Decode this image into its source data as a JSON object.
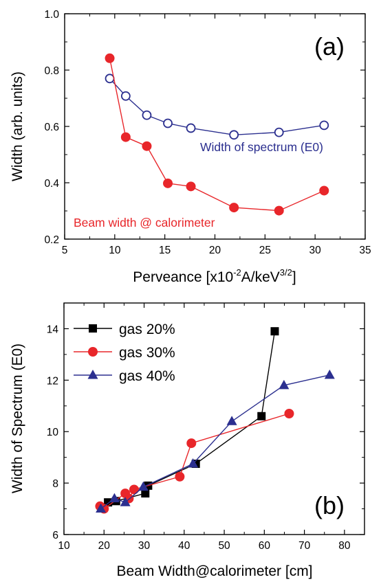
{
  "chart_data": [
    {
      "type": "line",
      "panel_label": "(a)",
      "xlabel": "Perveance [x10",
      "xlabel_exp1": "-2",
      "xlabel_mid": "A/keV",
      "xlabel_exp2": "3/2",
      "xlabel_end": "]",
      "ylabel": "Width (arb. units)",
      "xlim": [
        5,
        35
      ],
      "ylim": [
        0.2,
        1.0
      ],
      "x_ticks": [
        5,
        10,
        15,
        20,
        25,
        30,
        35
      ],
      "y_ticks": [
        0.2,
        0.4,
        0.6,
        0.8,
        1.0
      ],
      "x_tick_labels": [
        "5",
        "10",
        "15",
        "20",
        "25",
        "30",
        "35"
      ],
      "y_tick_labels": [
        "0.2",
        "0.4",
        "0.6",
        "0.8",
        "1.0"
      ],
      "grid": false,
      "series": [
        {
          "name": "Width of spectrum (E0)",
          "color": "#2b2f8f",
          "marker": "open-circle",
          "x": [
            9.5,
            11.1,
            13.2,
            15.3,
            17.6,
            21.9,
            26.4,
            30.9
          ],
          "y": [
            0.77,
            0.708,
            0.64,
            0.611,
            0.594,
            0.57,
            0.579,
            0.604
          ]
        },
        {
          "name": "Beam width @ calorimeter",
          "color": "#e8262a",
          "marker": "filled-circle",
          "x": [
            9.5,
            11.1,
            13.2,
            15.3,
            17.6,
            21.9,
            26.4,
            30.9
          ],
          "y": [
            0.842,
            0.562,
            0.53,
            0.398,
            0.387,
            0.312,
            0.301,
            0.372
          ]
        }
      ]
    },
    {
      "type": "line",
      "panel_label": "(b)",
      "xlabel": "Beam Width@calorimeter [cm]",
      "ylabel": "Width of Spectrum (E0)",
      "xlim": [
        10,
        85
      ],
      "ylim": [
        6,
        15
      ],
      "x_ticks": [
        10,
        20,
        30,
        40,
        50,
        60,
        70,
        80
      ],
      "y_ticks": [
        6,
        8,
        10,
        12,
        14
      ],
      "x_tick_labels": [
        "10",
        "20",
        "30",
        "40",
        "50",
        "60",
        "70",
        "80"
      ],
      "y_tick_labels": [
        "6",
        "8",
        "10",
        "12",
        "14"
      ],
      "grid": false,
      "legend_position": "top-left",
      "series": [
        {
          "name": "gas 20%",
          "color": "#000000",
          "marker": "square",
          "x": [
            19.8,
            21.0,
            23.0,
            30.3,
            31.0,
            42.9,
            59.3,
            62.6
          ],
          "y": [
            7.05,
            7.25,
            7.3,
            7.6,
            7.9,
            8.75,
            10.6,
            13.9
          ]
        },
        {
          "name": "gas 30%",
          "color": "#e8262a",
          "marker": "circle",
          "x": [
            19.0,
            20.0,
            25.3,
            26.2,
            27.5,
            38.9,
            41.8,
            66.2
          ],
          "y": [
            7.1,
            7.0,
            7.6,
            7.4,
            7.75,
            8.25,
            9.55,
            10.7
          ],
          "label_color": "#000000"
        },
        {
          "name": "gas 40%",
          "color": "#2b2f8f",
          "marker": "triangle",
          "x": [
            19.2,
            22.6,
            25.3,
            29.8,
            42.2,
            51.9,
            64.9,
            76.3
          ],
          "y": [
            7.0,
            7.4,
            7.25,
            7.85,
            8.75,
            10.4,
            11.8,
            12.2
          ]
        }
      ]
    }
  ]
}
